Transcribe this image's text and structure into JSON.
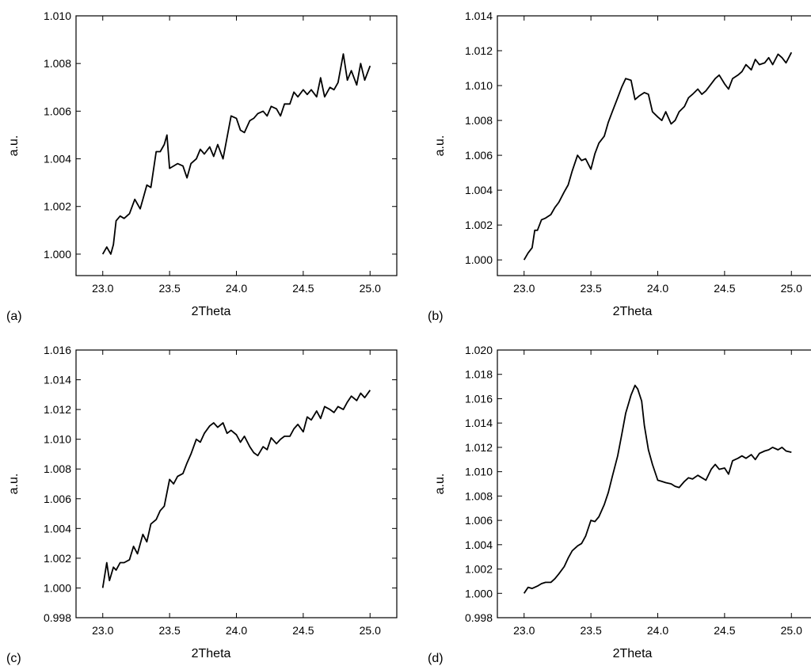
{
  "chart_data": [
    {
      "type": "line",
      "panel_label": "(a)",
      "xlabel": "2Theta",
      "ylabel": "a.u.",
      "xlim": [
        22.8,
        25.2
      ],
      "ylim": [
        0.9991,
        1.01
      ],
      "xticks": [
        23.0,
        23.5,
        24.0,
        24.5,
        25.0
      ],
      "xtick_labels": [
        "23.0",
        "23.5",
        "24.0",
        "24.5",
        "25.0"
      ],
      "yticks": [
        1.0,
        1.002,
        1.004,
        1.006,
        1.008,
        1.01
      ],
      "ytick_labels": [
        "1.000",
        "1.002",
        "1.004",
        "1.006",
        "1.008",
        "1.010"
      ],
      "grid": false,
      "series": [
        {
          "x": [
            23.0,
            23.03,
            23.06,
            23.08,
            23.1,
            23.13,
            23.16,
            23.2,
            23.24,
            23.28,
            23.3,
            23.33,
            23.36,
            23.4,
            23.43,
            23.46,
            23.48,
            23.5,
            23.53,
            23.56,
            23.6,
            23.63,
            23.66,
            23.7,
            23.73,
            23.76,
            23.8,
            23.83,
            23.86,
            23.9,
            23.93,
            23.96,
            24.0,
            24.03,
            24.06,
            24.1,
            24.13,
            24.16,
            24.2,
            24.23,
            24.26,
            24.3,
            24.33,
            24.36,
            24.4,
            24.43,
            24.46,
            24.5,
            24.53,
            24.56,
            24.6,
            24.63,
            24.66,
            24.7,
            24.73,
            24.76,
            24.8,
            24.83,
            24.86,
            24.9,
            24.93,
            24.96,
            25.0
          ],
          "y": [
            1.0,
            1.0003,
            1.0,
            1.0004,
            1.0014,
            1.0016,
            1.0015,
            1.0017,
            1.0023,
            1.0019,
            1.0023,
            1.0029,
            1.0028,
            1.0043,
            1.0043,
            1.0046,
            1.005,
            1.0036,
            1.0037,
            1.0038,
            1.0037,
            1.0032,
            1.0038,
            1.004,
            1.0044,
            1.0042,
            1.0045,
            1.0041,
            1.0046,
            1.004,
            1.0049,
            1.0058,
            1.0057,
            1.0052,
            1.0051,
            1.0056,
            1.0057,
            1.0059,
            1.006,
            1.0058,
            1.0062,
            1.0061,
            1.0058,
            1.0063,
            1.0063,
            1.0068,
            1.0066,
            1.0069,
            1.0067,
            1.0069,
            1.0066,
            1.0074,
            1.0066,
            1.007,
            1.0069,
            1.0072,
            1.0084,
            1.0073,
            1.0077,
            1.0071,
            1.008,
            1.0073,
            1.0079
          ]
        }
      ]
    },
    {
      "type": "line",
      "panel_label": "(b)",
      "xlabel": "2Theta",
      "ylabel": "a.u.",
      "xlim": [
        22.8,
        25.2
      ],
      "ylim": [
        0.9991,
        1.014
      ],
      "xticks": [
        23.0,
        23.5,
        24.0,
        24.5,
        25.0
      ],
      "xtick_labels": [
        "23.0",
        "23.5",
        "24.0",
        "24.5",
        "25.0"
      ],
      "yticks": [
        1.0,
        1.002,
        1.004,
        1.006,
        1.008,
        1.01,
        1.012,
        1.014
      ],
      "ytick_labels": [
        "1.000",
        "1.002",
        "1.004",
        "1.006",
        "1.008",
        "1.010",
        "1.012",
        "1.014"
      ],
      "grid": false,
      "series": [
        {
          "x": [
            23.0,
            23.03,
            23.06,
            23.08,
            23.1,
            23.13,
            23.16,
            23.2,
            23.23,
            23.26,
            23.3,
            23.33,
            23.36,
            23.4,
            23.43,
            23.46,
            23.5,
            23.53,
            23.56,
            23.6,
            23.63,
            23.66,
            23.7,
            23.73,
            23.76,
            23.8,
            23.83,
            23.86,
            23.9,
            23.93,
            23.96,
            24.0,
            24.03,
            24.06,
            24.1,
            24.13,
            24.16,
            24.2,
            24.23,
            24.26,
            24.3,
            24.33,
            24.36,
            24.4,
            24.43,
            24.46,
            24.5,
            24.53,
            24.56,
            24.6,
            24.63,
            24.66,
            24.7,
            24.73,
            24.76,
            24.8,
            24.83,
            24.86,
            24.9,
            24.93,
            24.96,
            25.0
          ],
          "y": [
            1.0,
            1.0004,
            1.0007,
            1.0017,
            1.0017,
            1.0023,
            1.0024,
            1.0026,
            1.003,
            1.0033,
            1.0039,
            1.0043,
            1.0051,
            1.006,
            1.0057,
            1.0058,
            1.0052,
            1.0061,
            1.0067,
            1.0071,
            1.0079,
            1.0085,
            1.0093,
            1.0099,
            1.0104,
            1.0103,
            1.0092,
            1.0094,
            1.0096,
            1.0095,
            1.0085,
            1.0082,
            1.008,
            1.0085,
            1.0078,
            1.008,
            1.0085,
            1.0088,
            1.0093,
            1.0095,
            1.0098,
            1.0095,
            1.0097,
            1.0101,
            1.0104,
            1.0106,
            1.0101,
            1.0098,
            1.0104,
            1.0106,
            1.0108,
            1.0112,
            1.0109,
            1.0115,
            1.0112,
            1.0113,
            1.0116,
            1.0112,
            1.0118,
            1.0116,
            1.0113,
            1.0119
          ]
        }
      ]
    },
    {
      "type": "line",
      "panel_label": "(c)",
      "xlabel": "2Theta",
      "ylabel": "a.u.",
      "xlim": [
        22.8,
        25.2
      ],
      "ylim": [
        0.998,
        1.016
      ],
      "xticks": [
        23.0,
        23.5,
        24.0,
        24.5,
        25.0
      ],
      "xtick_labels": [
        "23.0",
        "23.5",
        "24.0",
        "24.5",
        "25.0"
      ],
      "yticks": [
        0.998,
        1.0,
        1.002,
        1.004,
        1.006,
        1.008,
        1.01,
        1.012,
        1.014,
        1.016
      ],
      "ytick_labels": [
        "0.998",
        "1.000",
        "1.002",
        "1.004",
        "1.006",
        "1.008",
        "1.010",
        "1.012",
        "1.014",
        "1.016"
      ],
      "grid": false,
      "series": [
        {
          "x": [
            23.0,
            23.03,
            23.05,
            23.08,
            23.1,
            23.13,
            23.16,
            23.2,
            23.23,
            23.26,
            23.3,
            23.33,
            23.36,
            23.4,
            23.43,
            23.46,
            23.5,
            23.53,
            23.56,
            23.6,
            23.63,
            23.66,
            23.7,
            23.73,
            23.76,
            23.8,
            23.83,
            23.86,
            23.9,
            23.93,
            23.96,
            24.0,
            24.03,
            24.06,
            24.1,
            24.13,
            24.16,
            24.2,
            24.23,
            24.26,
            24.3,
            24.33,
            24.36,
            24.4,
            24.43,
            24.46,
            24.5,
            24.53,
            24.56,
            24.6,
            24.63,
            24.66,
            24.7,
            24.73,
            24.76,
            24.8,
            24.83,
            24.86,
            24.9,
            24.93,
            24.96,
            25.0
          ],
          "y": [
            1.0,
            1.0017,
            1.0005,
            1.0014,
            1.0012,
            1.0017,
            1.0017,
            1.0019,
            1.0028,
            1.0023,
            1.0036,
            1.0031,
            1.0043,
            1.0046,
            1.0052,
            1.0055,
            1.0073,
            1.007,
            1.0075,
            1.0077,
            1.0084,
            1.009,
            1.01,
            1.0098,
            1.0104,
            1.0109,
            1.0111,
            1.0108,
            1.0111,
            1.0104,
            1.0106,
            1.0103,
            1.0098,
            1.0102,
            1.0095,
            1.0091,
            1.0089,
            1.0095,
            1.0093,
            1.0101,
            1.0097,
            1.01,
            1.0102,
            1.0102,
            1.0107,
            1.011,
            1.0105,
            1.0115,
            1.0113,
            1.0119,
            1.0114,
            1.0122,
            1.012,
            1.0118,
            1.0122,
            1.012,
            1.0125,
            1.0129,
            1.0126,
            1.0131,
            1.0128,
            1.0133
          ]
        }
      ]
    },
    {
      "type": "line",
      "panel_label": "(d)",
      "xlabel": "2Theta",
      "ylabel": "a.u.",
      "xlim": [
        22.8,
        25.2
      ],
      "ylim": [
        0.998,
        1.02
      ],
      "xticks": [
        23.0,
        23.5,
        24.0,
        24.5,
        25.0
      ],
      "xtick_labels": [
        "23.0",
        "23.5",
        "24.0",
        "24.5",
        "25.0"
      ],
      "yticks": [
        0.998,
        1.0,
        1.002,
        1.004,
        1.006,
        1.008,
        1.01,
        1.012,
        1.014,
        1.016,
        1.018,
        1.02
      ],
      "ytick_labels": [
        "0.998",
        "1.000",
        "1.002",
        "1.004",
        "1.006",
        "1.008",
        "1.010",
        "1.012",
        "1.014",
        "1.016",
        "1.018",
        "1.020"
      ],
      "grid": false,
      "series": [
        {
          "x": [
            23.0,
            23.03,
            23.06,
            23.1,
            23.13,
            23.16,
            23.2,
            23.23,
            23.26,
            23.3,
            23.33,
            23.36,
            23.4,
            23.43,
            23.46,
            23.5,
            23.53,
            23.56,
            23.6,
            23.63,
            23.66,
            23.7,
            23.73,
            23.76,
            23.8,
            23.83,
            23.85,
            23.88,
            23.9,
            23.93,
            23.96,
            24.0,
            24.03,
            24.06,
            24.1,
            24.13,
            24.16,
            24.2,
            24.23,
            24.26,
            24.3,
            24.33,
            24.36,
            24.4,
            24.43,
            24.46,
            24.5,
            24.53,
            24.56,
            24.6,
            24.63,
            24.66,
            24.7,
            24.73,
            24.76,
            24.8,
            24.83,
            24.86,
            24.9,
            24.93,
            24.96,
            25.0
          ],
          "y": [
            1.0,
            1.0005,
            1.0004,
            1.0006,
            1.0008,
            1.0009,
            1.0009,
            1.0012,
            1.0016,
            1.0022,
            1.0029,
            1.0035,
            1.0039,
            1.0041,
            1.0047,
            1.006,
            1.0059,
            1.0063,
            1.0073,
            1.0083,
            1.0096,
            1.0113,
            1.013,
            1.0148,
            1.0163,
            1.0171,
            1.0168,
            1.0158,
            1.0138,
            1.0118,
            1.0106,
            1.0093,
            1.0092,
            1.0091,
            1.009,
            1.0088,
            1.0087,
            1.0092,
            1.0095,
            1.0094,
            1.0097,
            1.0095,
            1.0093,
            1.0102,
            1.0106,
            1.0102,
            1.0103,
            1.0098,
            1.0109,
            1.0111,
            1.0113,
            1.0111,
            1.0114,
            1.011,
            1.0115,
            1.0117,
            1.0118,
            1.012,
            1.0118,
            1.012,
            1.0117,
            1.0116
          ]
        }
      ]
    }
  ]
}
